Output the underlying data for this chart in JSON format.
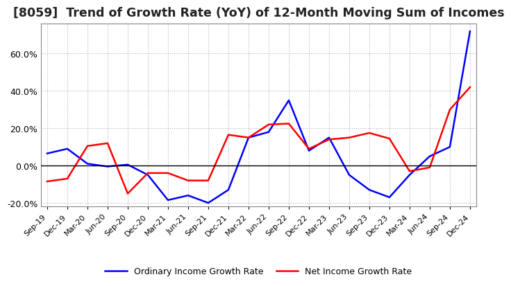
{
  "title": "[8059]  Trend of Growth Rate (YoY) of 12-Month Moving Sum of Incomes",
  "title_fontsize": 12.5,
  "legend_labels": [
    "Ordinary Income Growth Rate",
    "Net Income Growth Rate"
  ],
  "line_colors": [
    "blue",
    "red"
  ],
  "x_labels": [
    "Sep-19",
    "Dec-19",
    "Mar-20",
    "Jun-20",
    "Sep-20",
    "Dec-20",
    "Mar-21",
    "Jun-21",
    "Sep-21",
    "Dec-21",
    "Mar-22",
    "Jun-22",
    "Sep-22",
    "Dec-22",
    "Mar-23",
    "Jun-23",
    "Sep-23",
    "Dec-23",
    "Mar-24",
    "Jun-24",
    "Sep-24",
    "Dec-24"
  ],
  "ordinary_income": [
    6.5,
    9.0,
    1.0,
    -0.5,
    0.5,
    -5.0,
    -18.5,
    -16.0,
    -20.0,
    -13.0,
    15.0,
    18.0,
    35.0,
    8.0,
    15.0,
    -5.0,
    -13.0,
    -17.0,
    -5.0,
    5.0,
    10.0,
    72.0
  ],
  "net_income": [
    -8.5,
    -7.0,
    10.5,
    12.0,
    -15.0,
    -4.0,
    -4.0,
    -8.0,
    -8.0,
    16.5,
    15.0,
    22.0,
    22.5,
    9.0,
    14.0,
    15.0,
    17.5,
    14.5,
    -3.0,
    -1.0,
    30.0,
    42.0
  ],
  "ylim": [
    -22,
    76
  ],
  "yticks": [
    -20.0,
    0.0,
    20.0,
    40.0,
    60.0
  ],
  "background_color": "#ffffff",
  "grid_color": "#aaaaaa",
  "box_color": "#888888"
}
